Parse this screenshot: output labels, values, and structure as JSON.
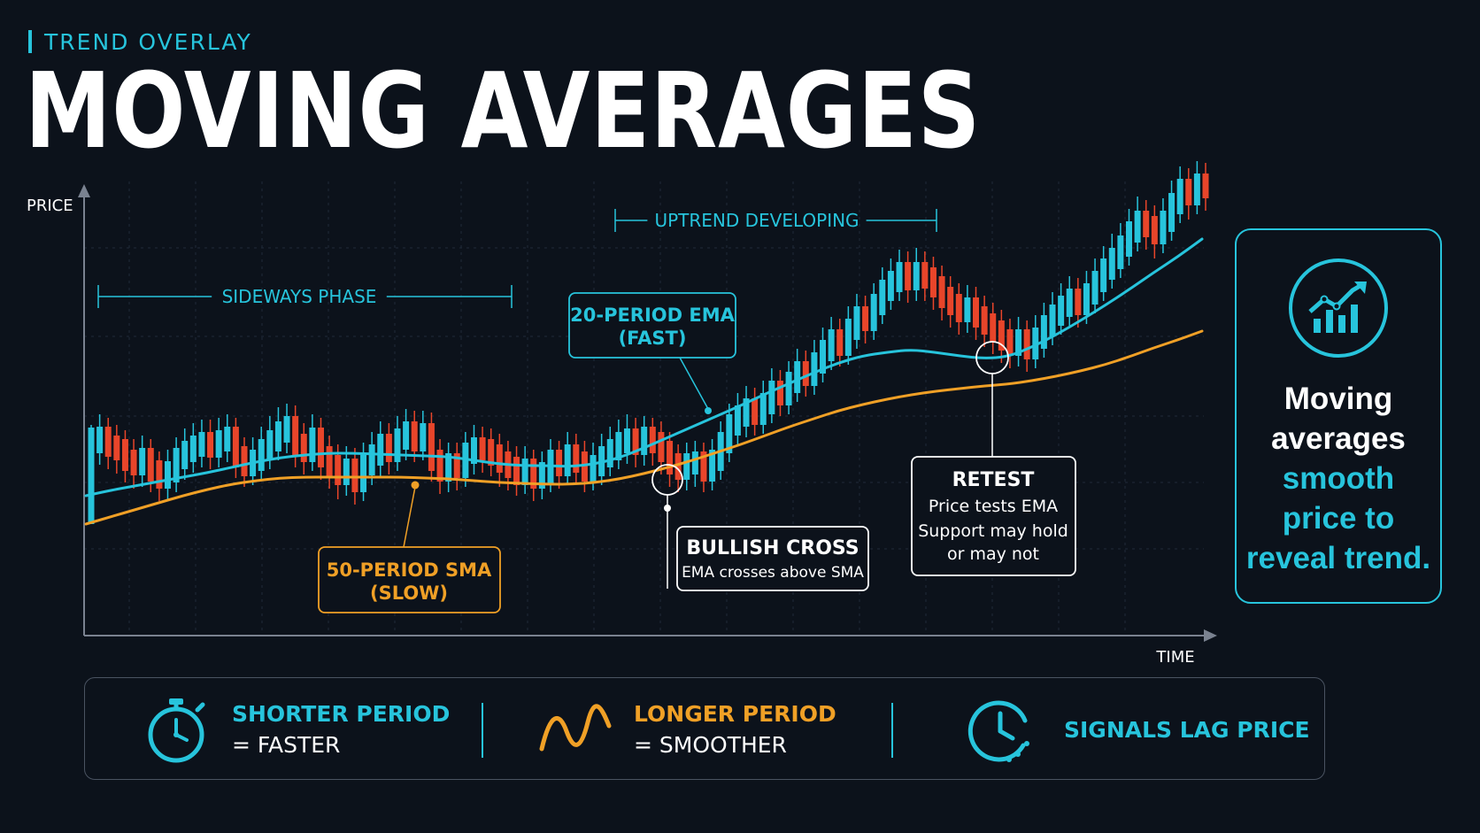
{
  "header": {
    "eyebrow": "TREND OVERLAY",
    "title": "MOVING AVERAGES"
  },
  "colors": {
    "background": "#0c121b",
    "accent_cyan": "#27c4dc",
    "accent_orange": "#f0a026",
    "candle_up": "#27c4dc",
    "candle_down": "#e8452a",
    "axis": "#7a8290",
    "grid": "#1f2a38"
  },
  "chart_data": {
    "type": "line",
    "xlabel": "TIME",
    "ylabel": "PRICE",
    "grid": true,
    "series": [
      {
        "name": "20-PERIOD EMA (FAST)",
        "color": "#27c4dc",
        "values": [
          20,
          26,
          31,
          36,
          41,
          46,
          52,
          58,
          63,
          66,
          68,
          68,
          67,
          66,
          65,
          64,
          60,
          56,
          54,
          54,
          53,
          56,
          63,
          74,
          86,
          98,
          110,
          122,
          135,
          147,
          159,
          170,
          178,
          182,
          185,
          182,
          178,
          175,
          177,
          188,
          202,
          218,
          235,
          253,
          272,
          290,
          310
        ]
      },
      {
        "name": "50-PERIOD SMA (SLOW)",
        "color": "#f0a026",
        "values": [
          -12,
          -4,
          4,
          12,
          20,
          27,
          33,
          37,
          40,
          41,
          41,
          41,
          41,
          41,
          40,
          39,
          37,
          35,
          34,
          33,
          33,
          35,
          39,
          45,
          52,
          60,
          69,
          78,
          88,
          98,
          107,
          116,
          123,
          129,
          134,
          138,
          141,
          144,
          146,
          150,
          155,
          161,
          168,
          177,
          187,
          196,
          206
        ]
      }
    ],
    "annotations": {
      "sideways": "SIDEWAYS PHASE",
      "uptrend": "UPTREND DEVELOPING",
      "ema_label_1": "20-PERIOD EMA",
      "ema_label_2": "(FAST)",
      "sma_label_1": "50-PERIOD SMA",
      "sma_label_2": "(SLOW)",
      "cross_title": "BULLISH CROSS",
      "cross_text": "EMA crosses above SMA",
      "retest_title": "RETEST",
      "retest_line_1": "Price tests EMA",
      "retest_line_2": "Support may hold",
      "retest_line_3": "or may not"
    },
    "candles": [
      [
        85,
        0,
        80,
        8,
        false,
        true
      ],
      [
        86,
        80,
        92,
        75,
        false,
        true
      ],
      [
        76,
        86,
        88,
        70,
        false,
        false
      ],
      [
        72,
        76,
        80,
        65,
        false,
        false
      ],
      [
        60,
        72,
        74,
        55,
        false,
        false
      ],
      [
        55,
        60,
        64,
        48,
        false,
        false
      ],
      [
        62,
        55,
        68,
        50,
        false,
        true
      ],
      [
        48,
        62,
        64,
        44,
        false,
        false
      ],
      [
        40,
        48,
        50,
        34,
        false,
        false
      ],
      [
        47,
        40,
        52,
        36,
        false,
        true
      ],
      [
        62,
        47,
        66,
        44,
        false,
        true
      ],
      [
        70,
        62,
        76,
        58,
        false,
        true
      ],
      [
        76,
        70,
        82,
        66,
        false,
        true
      ],
      [
        80,
        76,
        86,
        72,
        false,
        true
      ],
      [
        75,
        80,
        86,
        70,
        false,
        false
      ],
      [
        82,
        75,
        88,
        72,
        false,
        true
      ],
      [
        86,
        82,
        92,
        78,
        false,
        true
      ],
      [
        64,
        86,
        88,
        60,
        false,
        false
      ],
      [
        54,
        64,
        66,
        50,
        false,
        false
      ],
      [
        60,
        54,
        66,
        52,
        false,
        true
      ],
      [
        72,
        60,
        78,
        58,
        false,
        true
      ],
      [
        82,
        72,
        90,
        70,
        false,
        true
      ],
      [
        92,
        82,
        100,
        80,
        false,
        true
      ],
      [
        98,
        92,
        104,
        88,
        false,
        true
      ],
      [
        78,
        98,
        102,
        72,
        false,
        false
      ],
      [
        70,
        78,
        82,
        64,
        false,
        false
      ],
      [
        85,
        70,
        92,
        68,
        false,
        true
      ],
      [
        64,
        85,
        88,
        58,
        false,
        false
      ],
      [
        54,
        64,
        68,
        48,
        false,
        false
      ],
      [
        44,
        54,
        58,
        36,
        false,
        false
      ],
      [
        50,
        44,
        56,
        40,
        false,
        true
      ],
      [
        36,
        50,
        54,
        30,
        false,
        false
      ],
      [
        55,
        36,
        60,
        34,
        false,
        true
      ],
      [
        66,
        55,
        72,
        52,
        false,
        true
      ],
      [
        78,
        66,
        84,
        62,
        false,
        true
      ],
      [
        70,
        78,
        82,
        64,
        false,
        false
      ],
      [
        84,
        70,
        90,
        68,
        false,
        true
      ],
      [
        92,
        84,
        98,
        80,
        false,
        true
      ],
      [
        82,
        92,
        96,
        78,
        false,
        false
      ],
      [
        90,
        82,
        96,
        80,
        false,
        true
      ],
      [
        60,
        90,
        94,
        56,
        false,
        false
      ],
      [
        48,
        60,
        64,
        42,
        false,
        false
      ],
      [
        56,
        48,
        60,
        44,
        false,
        true
      ],
      [
        52,
        56,
        60,
        46,
        false,
        false
      ],
      [
        68,
        52,
        72,
        50,
        false,
        true
      ],
      [
        74,
        68,
        80,
        64,
        false,
        true
      ],
      [
        72,
        74,
        78,
        66,
        false,
        false
      ],
      [
        66,
        72,
        76,
        62,
        false,
        false
      ],
      [
        58,
        66,
        70,
        50,
        false,
        false
      ],
      [
        52,
        58,
        62,
        46,
        false,
        false
      ],
      [
        44,
        52,
        56,
        40,
        false,
        false
      ],
      [
        50,
        44,
        56,
        42,
        false,
        true
      ],
      [
        40,
        50,
        52,
        34,
        false,
        false
      ],
      [
        46,
        40,
        50,
        36,
        false,
        true
      ],
      [
        60,
        46,
        64,
        44,
        false,
        true
      ],
      [
        54,
        60,
        62,
        48,
        false,
        false
      ],
      [
        66,
        54,
        72,
        52,
        false,
        true
      ],
      [
        58,
        66,
        70,
        54,
        false,
        false
      ],
      [
        48,
        58,
        62,
        44,
        false,
        false
      ],
      [
        54,
        48,
        60,
        46,
        false,
        true
      ],
      [
        64,
        54,
        70,
        52,
        false,
        true
      ],
      [
        72,
        64,
        78,
        62,
        false,
        true
      ],
      [
        80,
        72,
        86,
        70,
        false,
        true
      ],
      [
        84,
        80,
        92,
        76,
        false,
        true
      ],
      [
        78,
        84,
        88,
        72,
        false,
        false
      ],
      [
        86,
        78,
        90,
        74,
        false,
        true
      ],
      [
        80,
        86,
        88,
        74,
        false,
        false
      ],
      [
        70,
        80,
        84,
        64,
        false,
        false
      ],
      [
        56,
        70,
        72,
        50,
        false,
        false
      ],
      [
        50,
        56,
        58,
        44,
        false,
        false
      ],
      [
        56,
        50,
        60,
        46,
        false,
        true
      ],
      [
        58,
        56,
        62,
        50,
        false,
        true
      ],
      [
        48,
        58,
        60,
        44,
        false,
        false
      ],
      [
        60,
        48,
        64,
        46,
        false,
        true
      ],
      [
        80,
        60,
        84,
        58,
        false,
        true
      ],
      [
        100,
        80,
        104,
        78,
        false,
        true
      ],
      [
        110,
        100,
        116,
        98,
        false,
        true
      ],
      [
        118,
        110,
        124,
        106,
        false,
        true
      ],
      [
        112,
        118,
        122,
        108,
        false,
        false
      ],
      [
        124,
        112,
        130,
        110,
        false,
        true
      ],
      [
        138,
        124,
        144,
        122,
        false,
        true
      ],
      [
        134,
        138,
        142,
        130,
        false,
        false
      ],
      [
        148,
        134,
        152,
        132,
        false,
        true
      ],
      [
        160,
        148,
        166,
        146,
        false,
        true
      ],
      [
        156,
        160,
        164,
        152,
        false,
        false
      ],
      [
        170,
        156,
        176,
        154,
        false,
        true
      ],
      [
        184,
        170,
        190,
        168,
        false,
        true
      ],
      [
        196,
        184,
        202,
        182,
        false,
        true
      ],
      [
        190,
        196,
        200,
        186,
        false,
        false
      ],
      [
        208,
        190,
        214,
        188,
        false,
        true
      ],
      [
        222,
        208,
        228,
        206,
        false,
        true
      ],
      [
        218,
        222,
        226,
        212,
        false,
        false
      ],
      [
        236,
        218,
        240,
        216,
        false,
        true
      ],
      [
        252,
        236,
        258,
        234,
        false,
        true
      ],
      [
        262,
        252,
        268,
        250,
        false,
        true
      ],
      [
        272,
        262,
        278,
        260,
        false,
        true
      ],
      [
        264,
        272,
        276,
        258,
        false,
        false
      ],
      [
        272,
        264,
        280,
        260,
        false,
        true
      ],
      [
        266,
        272,
        276,
        260,
        false,
        false
      ],
      [
        256,
        266,
        270,
        250,
        false,
        false
      ],
      [
        244,
        256,
        260,
        238,
        false,
        false
      ],
      [
        236,
        244,
        248,
        230,
        false,
        false
      ],
      [
        228,
        236,
        240,
        222,
        false,
        false
      ],
      [
        232,
        228,
        238,
        224,
        false,
        true
      ],
      [
        222,
        232,
        236,
        216,
        false,
        false
      ],
      [
        214,
        222,
        226,
        208,
        false,
        false
      ],
      [
        206,
        214,
        218,
        200,
        false,
        false
      ],
      [
        196,
        206,
        210,
        190,
        false,
        false
      ],
      [
        190,
        196,
        200,
        184,
        false,
        false
      ],
      [
        196,
        190,
        202,
        186,
        false,
        true
      ],
      [
        186,
        196,
        198,
        180,
        false,
        false
      ],
      [
        198,
        186,
        204,
        184,
        false,
        true
      ],
      [
        212,
        198,
        218,
        196,
        false,
        true
      ],
      [
        224,
        212,
        230,
        210,
        false,
        true
      ],
      [
        234,
        224,
        240,
        222,
        false,
        true
      ],
      [
        242,
        234,
        248,
        232,
        false,
        true
      ],
      [
        236,
        242,
        246,
        230,
        false,
        false
      ],
      [
        248,
        236,
        254,
        234,
        false,
        true
      ],
      [
        262,
        248,
        268,
        246,
        false,
        true
      ],
      [
        276,
        262,
        282,
        260,
        false,
        true
      ],
      [
        288,
        276,
        296,
        274,
        false,
        true
      ],
      [
        302,
        288,
        308,
        286,
        false,
        true
      ],
      [
        318,
        302,
        324,
        300,
        false,
        true
      ],
      [
        330,
        318,
        338,
        316,
        false,
        true
      ],
      [
        324,
        330,
        334,
        318,
        false,
        false
      ],
      [
        316,
        324,
        328,
        308,
        false,
        false
      ],
      [
        330,
        316,
        336,
        314,
        false,
        true
      ],
      [
        350,
        330,
        356,
        328,
        false,
        true
      ],
      [
        366,
        350,
        372,
        348,
        false,
        true
      ],
      [
        360,
        366,
        370,
        352,
        false,
        false
      ],
      [
        372,
        360,
        378,
        358,
        false,
        true
      ],
      [
        368,
        372,
        376,
        362,
        false,
        true
      ]
    ]
  },
  "side_card": {
    "icon": "trend-chart-icon",
    "line1": "Moving",
    "line2": "averages",
    "line3": "smooth",
    "line4": "price to",
    "line5": "reveal trend."
  },
  "bottom": {
    "item1_title": "SHORTER PERIOD",
    "item1_sub": "= FASTER",
    "item1_icon": "stopwatch-icon",
    "item2_title": "LONGER PERIOD",
    "item2_sub": "= SMOOTHER",
    "item2_icon": "wave-icon",
    "item3_title": "SIGNALS LAG PRICE",
    "item3_icon": "clock-icon"
  }
}
